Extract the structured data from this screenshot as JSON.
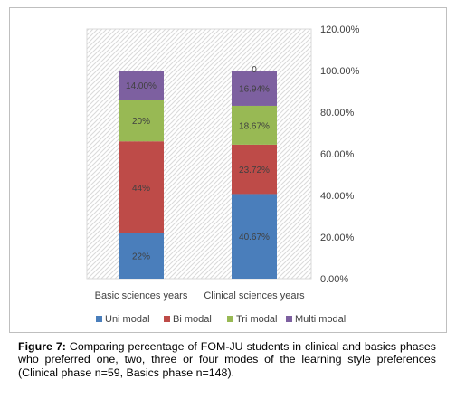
{
  "chart_data": {
    "type": "stacked-bar",
    "categories": [
      "Basic sciences years",
      "Clinical sciences years"
    ],
    "series": [
      {
        "name": "Uni modal",
        "color": "#4a7ebb",
        "values": [
          22,
          40.67
        ],
        "labels": [
          "22%",
          "40.67%"
        ]
      },
      {
        "name": "Bi modal",
        "color": "#be4b48",
        "values": [
          44,
          23.72
        ],
        "labels": [
          "44%",
          "23.72%"
        ]
      },
      {
        "name": "Tri modal",
        "color": "#98b954",
        "values": [
          20,
          18.67
        ],
        "labels": [
          "20%",
          "18.67%"
        ]
      },
      {
        "name": "Multi modal",
        "color": "#7d60a0",
        "values": [
          14,
          16.94
        ],
        "labels": [
          "14.00%",
          "16.94%"
        ]
      }
    ],
    "annotations": [
      {
        "category": "Clinical sciences years",
        "text": "0"
      }
    ],
    "ylim": [
      0,
      120
    ],
    "yticks": [
      0,
      20,
      40,
      60,
      80,
      100,
      120
    ],
    "ytick_labels": [
      "0.00%",
      "20.00%",
      "40.00%",
      "60.00%",
      "80.00%",
      "100.00%",
      "120.00%"
    ],
    "y_axis_side": "right",
    "background_pattern": "diagonal-hatch",
    "legend": "bottom"
  },
  "caption": {
    "label": "Figure 7:",
    "text": " Comparing percentage of FOM-JU students in clinical and basics phases who preferred one, two, three or four modes of the learning style preferences (Clinical phase n=59, Basics phase n=148)."
  }
}
